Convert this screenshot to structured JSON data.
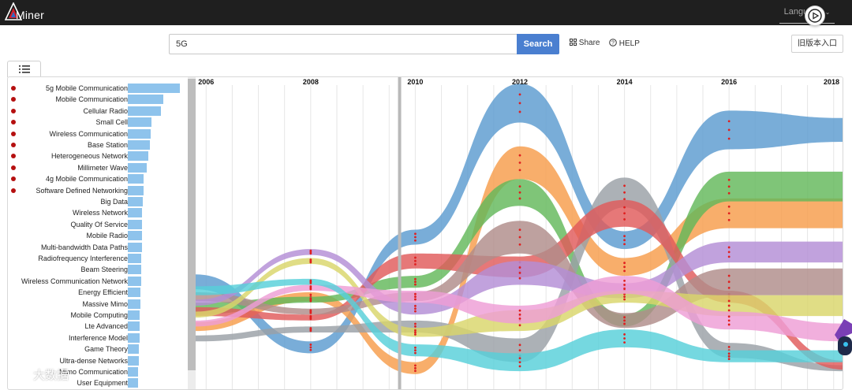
{
  "app": {
    "name": "Miner",
    "language_label": "Language"
  },
  "search": {
    "value": "5G",
    "button": "Search"
  },
  "toolbar": {
    "share": "Share",
    "help": "HELP",
    "old_version": "旧版本入口"
  },
  "watermark": {
    "text": "大数据"
  },
  "topics": [
    {
      "label": "5g Mobile Communication",
      "dot": true,
      "weight": 1.0
    },
    {
      "label": "Mobile Communication",
      "dot": true,
      "weight": 0.68
    },
    {
      "label": "Cellular Radio",
      "dot": true,
      "weight": 0.63
    },
    {
      "label": "Small Cell",
      "dot": true,
      "weight": 0.46
    },
    {
      "label": "Wireless Communication",
      "dot": true,
      "weight": 0.44
    },
    {
      "label": "Base Station",
      "dot": true,
      "weight": 0.43
    },
    {
      "label": "Heterogeneous Network",
      "dot": true,
      "weight": 0.4
    },
    {
      "label": "Millimeter Wave",
      "dot": true,
      "weight": 0.37
    },
    {
      "label": "4g Mobile Communication",
      "dot": true,
      "weight": 0.3
    },
    {
      "label": "Software Defined Networking",
      "dot": true,
      "weight": 0.3
    },
    {
      "label": "Big Data",
      "dot": false,
      "weight": 0.29
    },
    {
      "label": "Wireless Network",
      "dot": false,
      "weight": 0.28
    },
    {
      "label": "Quality Of Service",
      "dot": false,
      "weight": 0.28
    },
    {
      "label": "Mobile Radio",
      "dot": false,
      "weight": 0.27
    },
    {
      "label": "Multi-bandwidth Data Paths",
      "dot": false,
      "weight": 0.27
    },
    {
      "label": "Radiofrequency Interference",
      "dot": false,
      "weight": 0.26
    },
    {
      "label": "Beam Steering",
      "dot": false,
      "weight": 0.26
    },
    {
      "label": "Wireless Communication Network",
      "dot": false,
      "weight": 0.25
    },
    {
      "label": "Energy Efficient",
      "dot": false,
      "weight": 0.24
    },
    {
      "label": "Massive Mimo",
      "dot": false,
      "weight": 0.24
    },
    {
      "label": "Mobile Computing",
      "dot": false,
      "weight": 0.23
    },
    {
      "label": "Lte Advanced",
      "dot": false,
      "weight": 0.23
    },
    {
      "label": "Interference Model",
      "dot": false,
      "weight": 0.22
    },
    {
      "label": "Game Theory",
      "dot": false,
      "weight": 0.21
    },
    {
      "label": "Ultra-dense Networks",
      "dot": false,
      "weight": 0.21
    },
    {
      "label": "Mimo Communication",
      "dot": false,
      "weight": 0.2
    },
    {
      "label": "User Equipment",
      "dot": false,
      "weight": 0.2
    }
  ],
  "chart_data": {
    "type": "area",
    "x_ticks": [
      "2006",
      "2008",
      "2010",
      "2012",
      "2014",
      "2016",
      "2018"
    ],
    "x_range": [
      2005.8,
      2018.2
    ],
    "grid": true,
    "current_year_marker": 2009.7,
    "series": [
      {
        "color": "#5b9bd0",
        "points": [
          [
            2005.8,
            0.35,
            0.05
          ],
          [
            2008,
            0.13,
            0.04
          ],
          [
            2010,
            0.5,
            0.05
          ],
          [
            2012,
            0.95,
            0.13
          ],
          [
            2014,
            0.49,
            0.06
          ],
          [
            2016,
            0.86,
            0.13
          ],
          [
            2018.2,
            0.86,
            0.08
          ]
        ]
      },
      {
        "color": "#f79c4a",
        "points": [
          [
            2005.8,
            0.2,
            0.03
          ],
          [
            2008,
            0.3,
            0.03
          ],
          [
            2010,
            0.06,
            0.04
          ],
          [
            2012,
            0.75,
            0.11
          ],
          [
            2014,
            0.4,
            0.06
          ],
          [
            2016,
            0.58,
            0.1
          ],
          [
            2018.2,
            0.58,
            0.1
          ]
        ]
      },
      {
        "color": "#63b85a",
        "points": [
          [
            2005.8,
            0.26,
            0.04
          ],
          [
            2008,
            0.29,
            0.02
          ],
          [
            2010,
            0.35,
            0.04
          ],
          [
            2012,
            0.65,
            0.09
          ],
          [
            2014,
            0.22,
            0.04
          ],
          [
            2016,
            0.67,
            0.1
          ],
          [
            2018.2,
            0.67,
            0.1
          ]
        ]
      },
      {
        "color": "#9aa0a6",
        "points": [
          [
            2005.8,
            0.16,
            0.02
          ],
          [
            2008,
            0.19,
            0.02
          ],
          [
            2010,
            0.2,
            0.04
          ],
          [
            2012,
            0.12,
            0.08
          ],
          [
            2014,
            0.65,
            0.1
          ],
          [
            2016,
            0.12,
            0.05
          ],
          [
            2018.2,
            0.06,
            0.02
          ]
        ]
      },
      {
        "color": "#e05a5a",
        "points": [
          [
            2005.8,
            0.25,
            0.03
          ],
          [
            2008,
            0.23,
            0.02
          ],
          [
            2010,
            0.42,
            0.05
          ],
          [
            2012,
            0.4,
            0.07
          ],
          [
            2014,
            0.58,
            0.09
          ],
          [
            2016,
            0.3,
            0.04
          ],
          [
            2018.2,
            0.07,
            0.03
          ]
        ]
      },
      {
        "color": "#b08c8a",
        "points": [
          [
            2005.8,
            0.3,
            0.03
          ],
          [
            2008,
            0.25,
            0.02
          ],
          [
            2010,
            0.3,
            0.03
          ],
          [
            2012,
            0.5,
            0.11
          ],
          [
            2014,
            0.22,
            0.05
          ],
          [
            2016,
            0.35,
            0.09
          ],
          [
            2018.2,
            0.35,
            0.09
          ]
        ]
      },
      {
        "color": "#b38ed6",
        "points": [
          [
            2005.8,
            0.28,
            0.02
          ],
          [
            2008,
            0.45,
            0.02
          ],
          [
            2010,
            0.26,
            0.04
          ],
          [
            2012,
            0.38,
            0.08
          ],
          [
            2014,
            0.32,
            0.05
          ],
          [
            2016,
            0.45,
            0.07
          ],
          [
            2018.2,
            0.45,
            0.07
          ]
        ]
      },
      {
        "color": "#d9d66a",
        "points": [
          [
            2005.8,
            0.24,
            0.02
          ],
          [
            2008,
            0.42,
            0.02
          ],
          [
            2010,
            0.18,
            0.03
          ],
          [
            2012,
            0.22,
            0.07
          ],
          [
            2014,
            0.3,
            0.04
          ],
          [
            2016,
            0.27,
            0.07
          ],
          [
            2018.2,
            0.27,
            0.07
          ]
        ]
      },
      {
        "color": "#ee9dd6",
        "points": [
          [
            2005.8,
            0.21,
            0.02
          ],
          [
            2008,
            0.33,
            0.02
          ],
          [
            2010,
            0.3,
            0.04
          ],
          [
            2012,
            0.24,
            0.06
          ],
          [
            2014,
            0.34,
            0.06
          ],
          [
            2016,
            0.22,
            0.06
          ],
          [
            2018.2,
            0.18,
            0.06
          ]
        ]
      },
      {
        "color": "#57cfd9",
        "points": [
          [
            2005.8,
            0.32,
            0.03
          ],
          [
            2008,
            0.35,
            0.02
          ],
          [
            2010,
            0.12,
            0.04
          ],
          [
            2012,
            0.08,
            0.06
          ],
          [
            2014,
            0.16,
            0.06
          ],
          [
            2016,
            0.1,
            0.04
          ],
          [
            2018.2,
            0.1,
            0.04
          ]
        ]
      }
    ]
  }
}
